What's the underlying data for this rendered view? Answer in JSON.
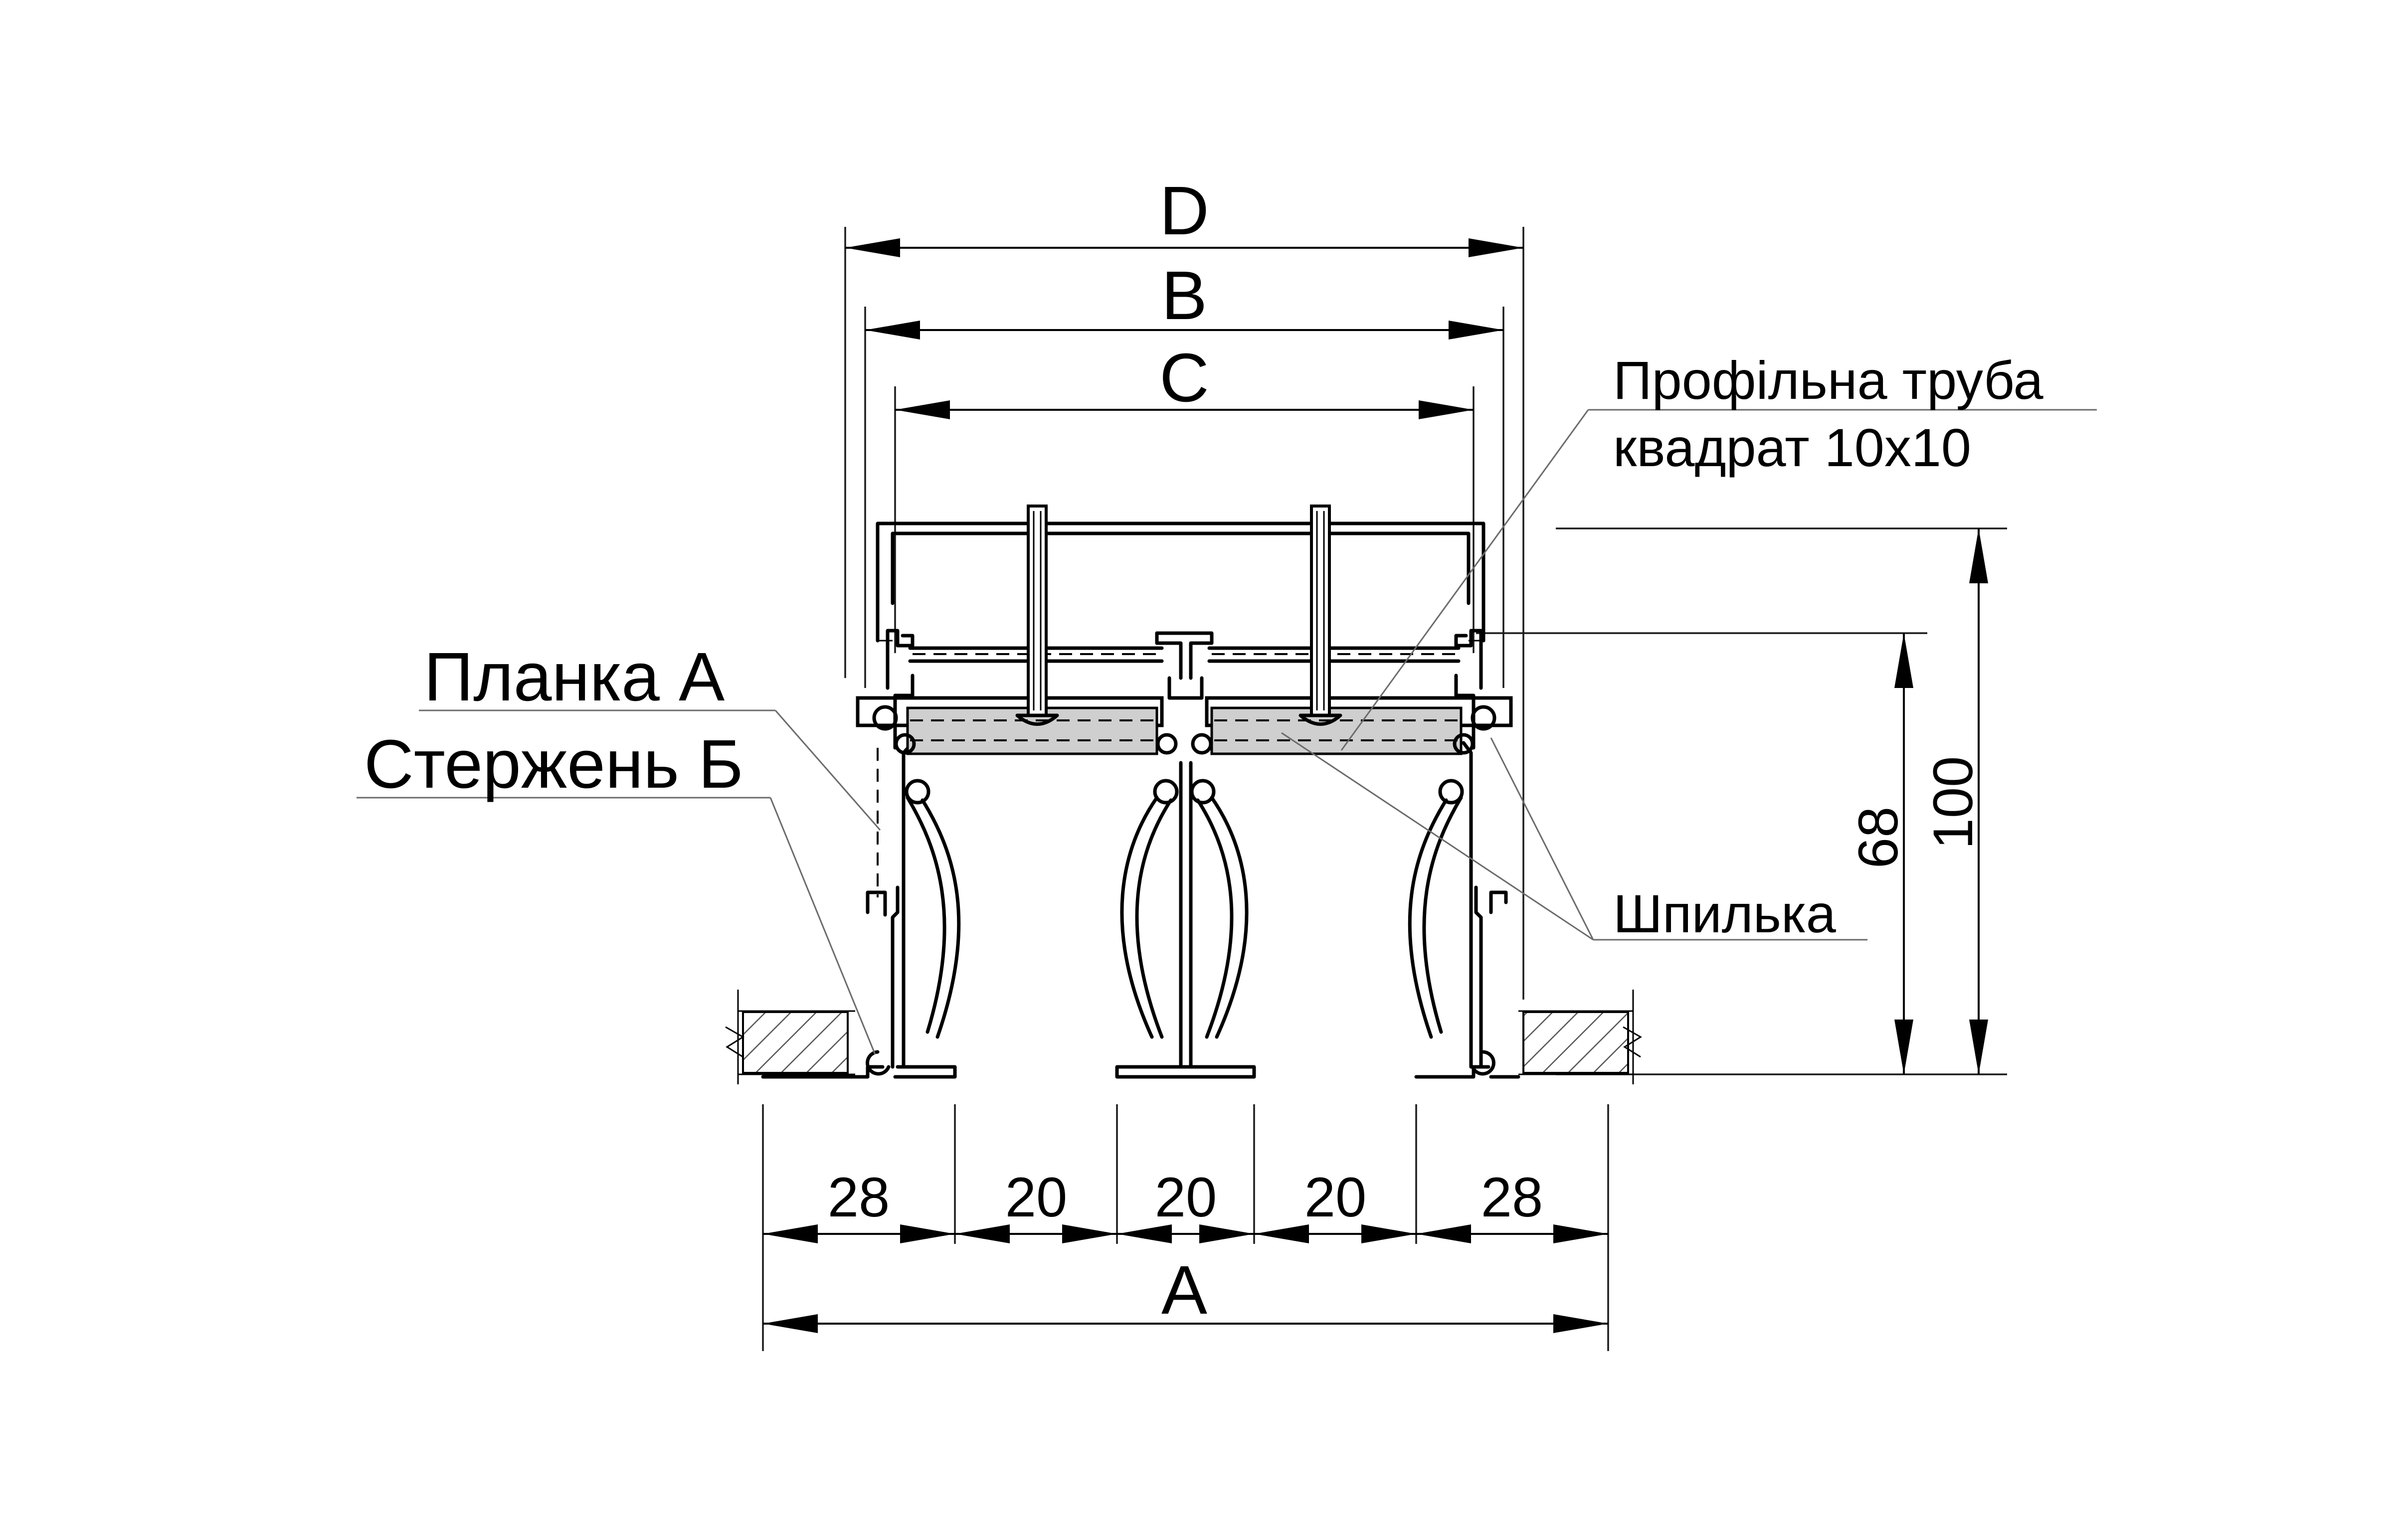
{
  "colors": {
    "line": "#000000",
    "leader": "#6b6b6b",
    "tube_fill": "#cfcfcf",
    "hatch": "#555555",
    "background": "#ffffff"
  },
  "dimensions": {
    "D": "D",
    "B": "B",
    "C": "C",
    "A": "A",
    "height_total": "100",
    "height_inner": "68",
    "segments": [
      "28",
      "20",
      "20",
      "20",
      "28"
    ]
  },
  "callouts": {
    "profile_tube_line1": "Профільна труба",
    "profile_tube_line2": "квадрат 10х10",
    "plank_a": "Планка А",
    "rod_b": "Стержень Б",
    "stud": "Шпилька"
  }
}
